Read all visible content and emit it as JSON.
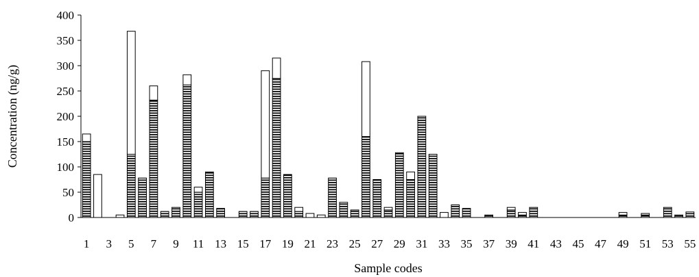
{
  "chart_data": {
    "type": "bar",
    "stacked": true,
    "xlabel": "Sample codes",
    "ylabel": "Concentration (ng/g)",
    "ylim": [
      0,
      400
    ],
    "yticks": [
      0,
      50,
      100,
      150,
      200,
      250,
      300,
      350,
      400
    ],
    "categories": [
      "1",
      "2",
      "3",
      "4",
      "5",
      "6",
      "7",
      "8",
      "9",
      "10",
      "11",
      "12",
      "13",
      "14",
      "15",
      "16",
      "17",
      "18",
      "19",
      "20",
      "21",
      "22",
      "23",
      "24",
      "25",
      "26",
      "27",
      "28",
      "29",
      "30",
      "31",
      "32",
      "33",
      "34",
      "35",
      "36",
      "37",
      "38",
      "39",
      "40",
      "41",
      "42",
      "43",
      "44",
      "45",
      "46",
      "47",
      "48",
      "49",
      "50",
      "51",
      "52",
      "53",
      "54",
      "55"
    ],
    "xtick_labels": [
      "1",
      "3",
      "5",
      "7",
      "9",
      "11",
      "13",
      "15",
      "17",
      "19",
      "21",
      "23",
      "25",
      "27",
      "29",
      "31",
      "33",
      "35",
      "37",
      "39",
      "41",
      "43",
      "45",
      "47",
      "49",
      "51",
      "53",
      "55"
    ],
    "grid": false,
    "legend": "none",
    "series": [
      {
        "pattern": "horizontal-stripes",
        "color": "#000000",
        "values": [
          150,
          0,
          0,
          0,
          125,
          78,
          232,
          12,
          20,
          262,
          50,
          90,
          18,
          0,
          12,
          12,
          78,
          275,
          85,
          12,
          0,
          0,
          78,
          30,
          15,
          160,
          75,
          15,
          128,
          75,
          200,
          125,
          0,
          25,
          18,
          0,
          5,
          0,
          15,
          5,
          20,
          0,
          0,
          0,
          0,
          0,
          0,
          0,
          5,
          0,
          5,
          0,
          20,
          5,
          8
        ]
      },
      {
        "pattern": "open",
        "color": "#ffffff",
        "values": [
          15,
          85,
          0,
          5,
          243,
          0,
          28,
          0,
          0,
          20,
          10,
          0,
          0,
          0,
          0,
          0,
          212,
          40,
          0,
          8,
          8,
          5,
          0,
          0,
          0,
          148,
          0,
          5,
          0,
          15,
          0,
          0,
          10,
          0,
          0,
          0,
          0,
          0,
          5,
          5,
          0,
          0,
          0,
          0,
          0,
          0,
          0,
          0,
          5,
          0,
          3,
          0,
          0,
          0,
          3
        ]
      }
    ]
  }
}
